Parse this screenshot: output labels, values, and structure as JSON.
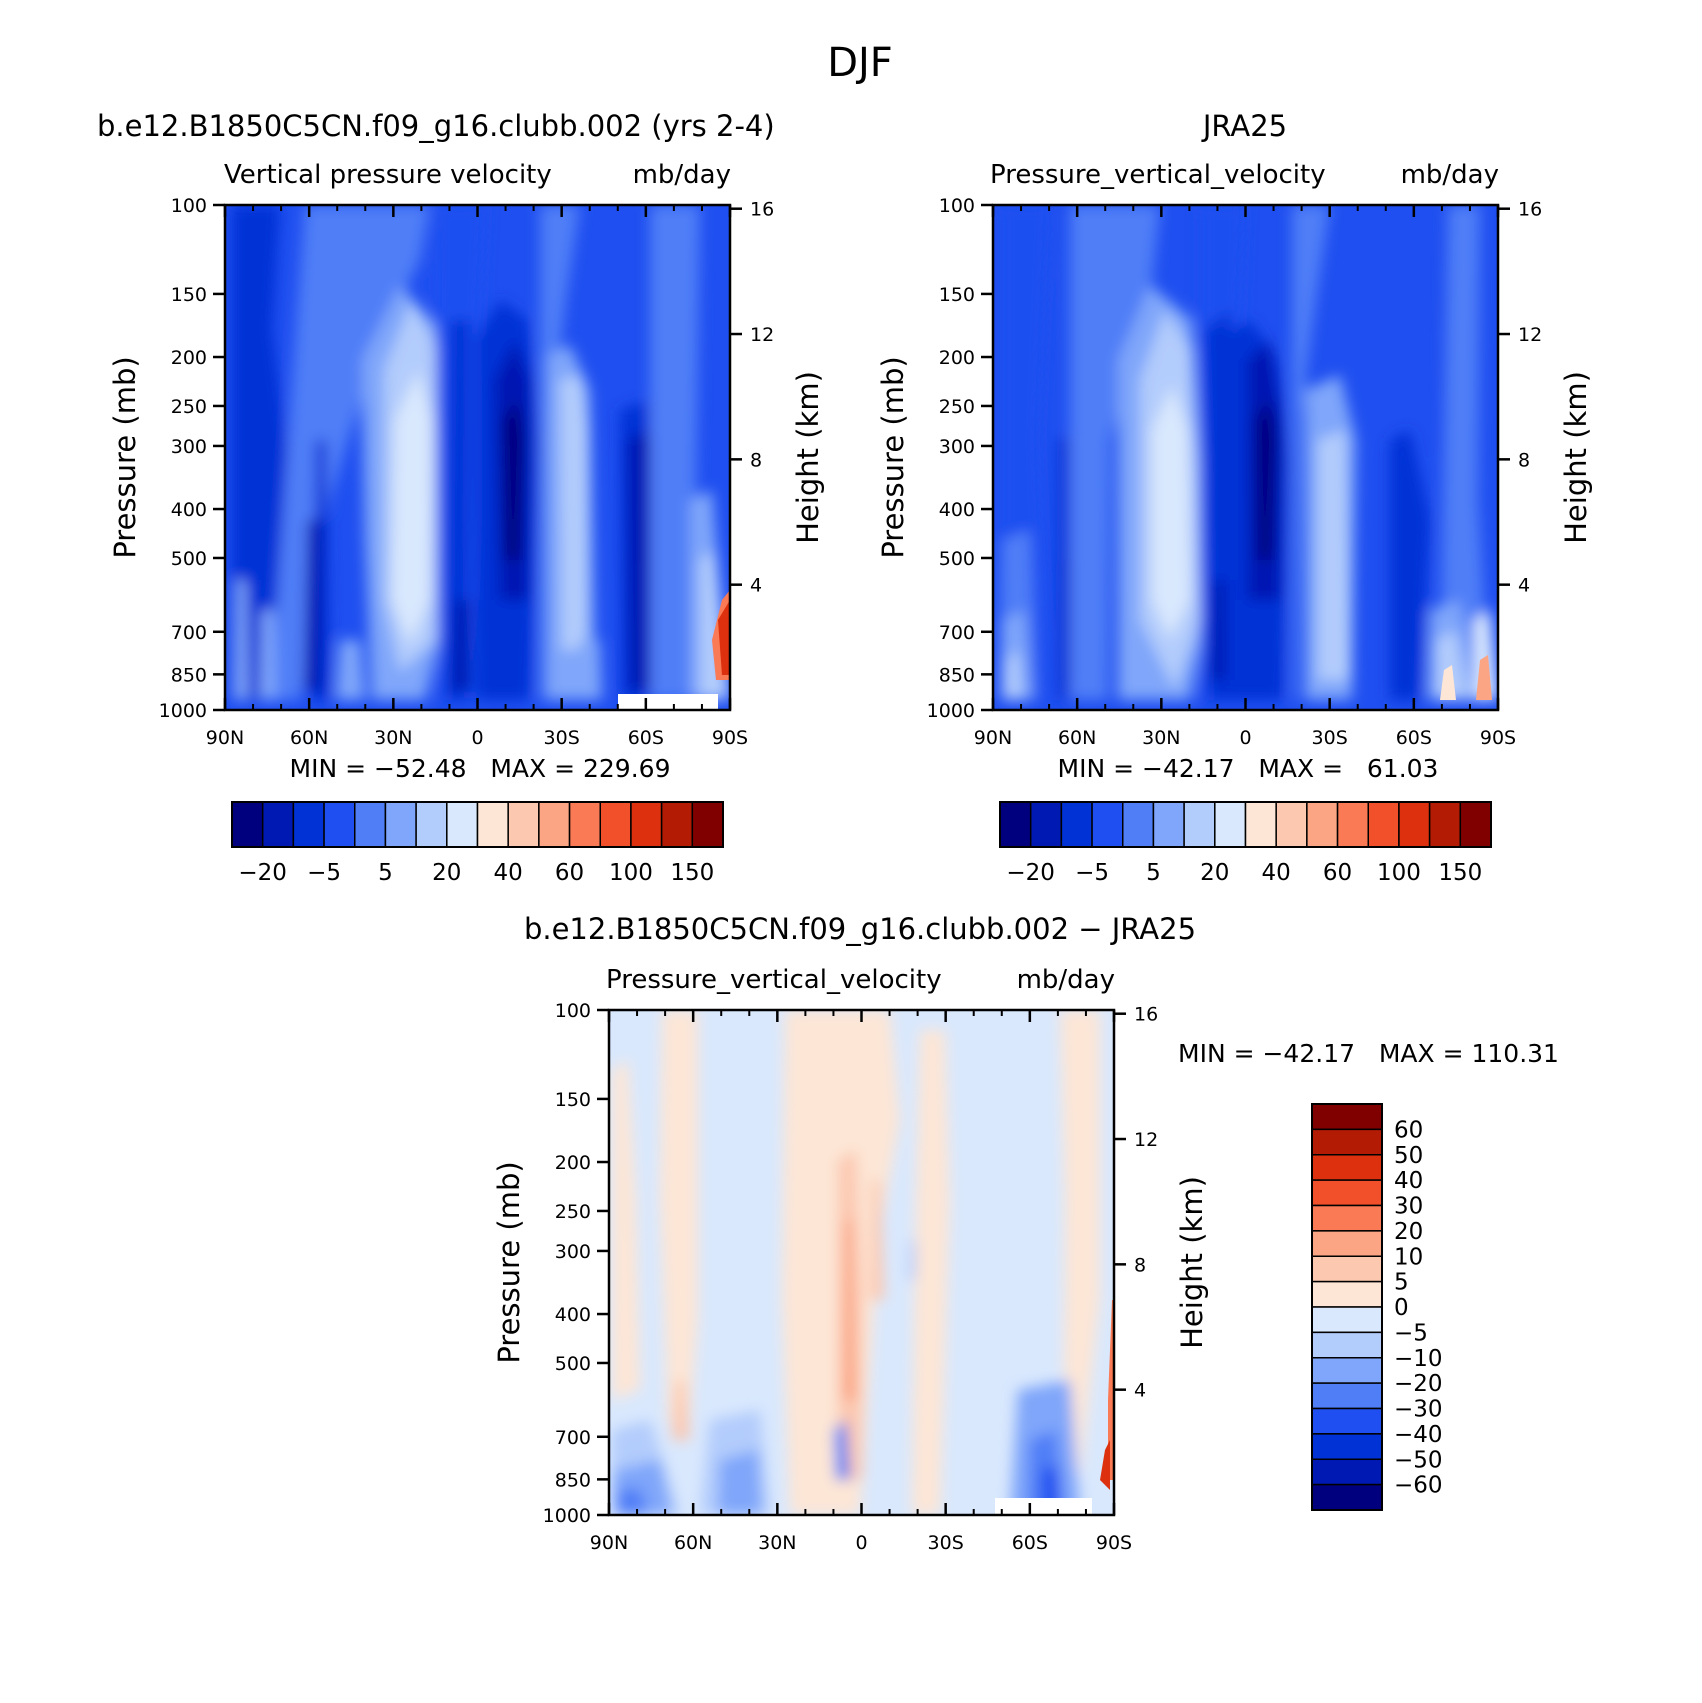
{
  "page_title": "DJF",
  "palettes": {
    "mean": [
      "#00007f",
      "#0019b2",
      "#0032d6",
      "#1f4ff0",
      "#4f7ef7",
      "#7fa6fa",
      "#b2ccfc",
      "#d9e8fd",
      "#fde6d6",
      "#fcc8b0",
      "#fba584",
      "#f97a54",
      "#f24f2b",
      "#dc300e",
      "#b31b05",
      "#800000"
    ],
    "diff": [
      "#00007f",
      "#0019b2",
      "#0032d6",
      "#1f4ff0",
      "#4f7ef7",
      "#7fa6fa",
      "#b2ccfc",
      "#d9e8fd",
      "#fde6d6",
      "#fcc8b0",
      "#fba584",
      "#f97a54",
      "#f24f2b",
      "#dc300e",
      "#b31b05",
      "#800000"
    ]
  },
  "chart_data": [
    {
      "type": "heatmap",
      "id": "model",
      "case_title": "b.e12.B1850C5CN.f09_g16.clubb.002 (yrs 2-4)",
      "variable": "Vertical pressure velocity",
      "units": "mb/day",
      "ylabel": "Pressure (mb)",
      "ylabel_right": "Height (km)",
      "x_ticks": [
        "90N",
        "60N",
        "30N",
        "0",
        "30S",
        "60S",
        "90S"
      ],
      "y_ticks": [
        "100",
        "150",
        "200",
        "250",
        "300",
        "400",
        "500",
        "700",
        "850",
        "1000"
      ],
      "y_right_ticks": [
        "16",
        "12",
        "8",
        "4"
      ],
      "min_max": "MIN = −52.48   MAX = 229.69",
      "colorbar_labels": [
        "−20",
        "−5",
        "5",
        "20",
        "40",
        "60",
        "100",
        "150"
      ],
      "colorbar_orientation": "horizontal"
    },
    {
      "type": "heatmap",
      "id": "obs",
      "case_title": "JRA25",
      "variable": "Pressure_vertical_velocity",
      "units": "mb/day",
      "ylabel": "Pressure (mb)",
      "ylabel_right": "Height (km)",
      "x_ticks": [
        "90N",
        "60N",
        "30N",
        "0",
        "30S",
        "60S",
        "90S"
      ],
      "y_ticks": [
        "100",
        "150",
        "200",
        "250",
        "300",
        "400",
        "500",
        "700",
        "850",
        "1000"
      ],
      "y_right_ticks": [
        "16",
        "12",
        "8",
        "4"
      ],
      "min_max": "MIN = −42.17   MAX =   61.03",
      "colorbar_labels": [
        "−20",
        "−5",
        "5",
        "20",
        "40",
        "60",
        "100",
        "150"
      ],
      "colorbar_orientation": "horizontal"
    },
    {
      "type": "heatmap",
      "id": "diff",
      "case_title": "b.e12.B1850C5CN.f09_g16.clubb.002 − JRA25",
      "variable": "Pressure_vertical_velocity",
      "units": "mb/day",
      "ylabel": "Pressure (mb)",
      "ylabel_right": "Height (km)",
      "x_ticks": [
        "90N",
        "60N",
        "30N",
        "0",
        "30S",
        "60S",
        "90S"
      ],
      "y_ticks": [
        "100",
        "150",
        "200",
        "250",
        "300",
        "400",
        "500",
        "700",
        "850",
        "1000"
      ],
      "y_right_ticks": [
        "16",
        "12",
        "8",
        "4"
      ],
      "min_max": "MIN = −42.17   MAX = 110.31",
      "colorbar_labels": [
        "60",
        "50",
        "40",
        "30",
        "20",
        "10",
        "5",
        "0",
        "−5",
        "−10",
        "−20",
        "−30",
        "−40",
        "−50",
        "−60"
      ],
      "colorbar_orientation": "vertical"
    }
  ]
}
